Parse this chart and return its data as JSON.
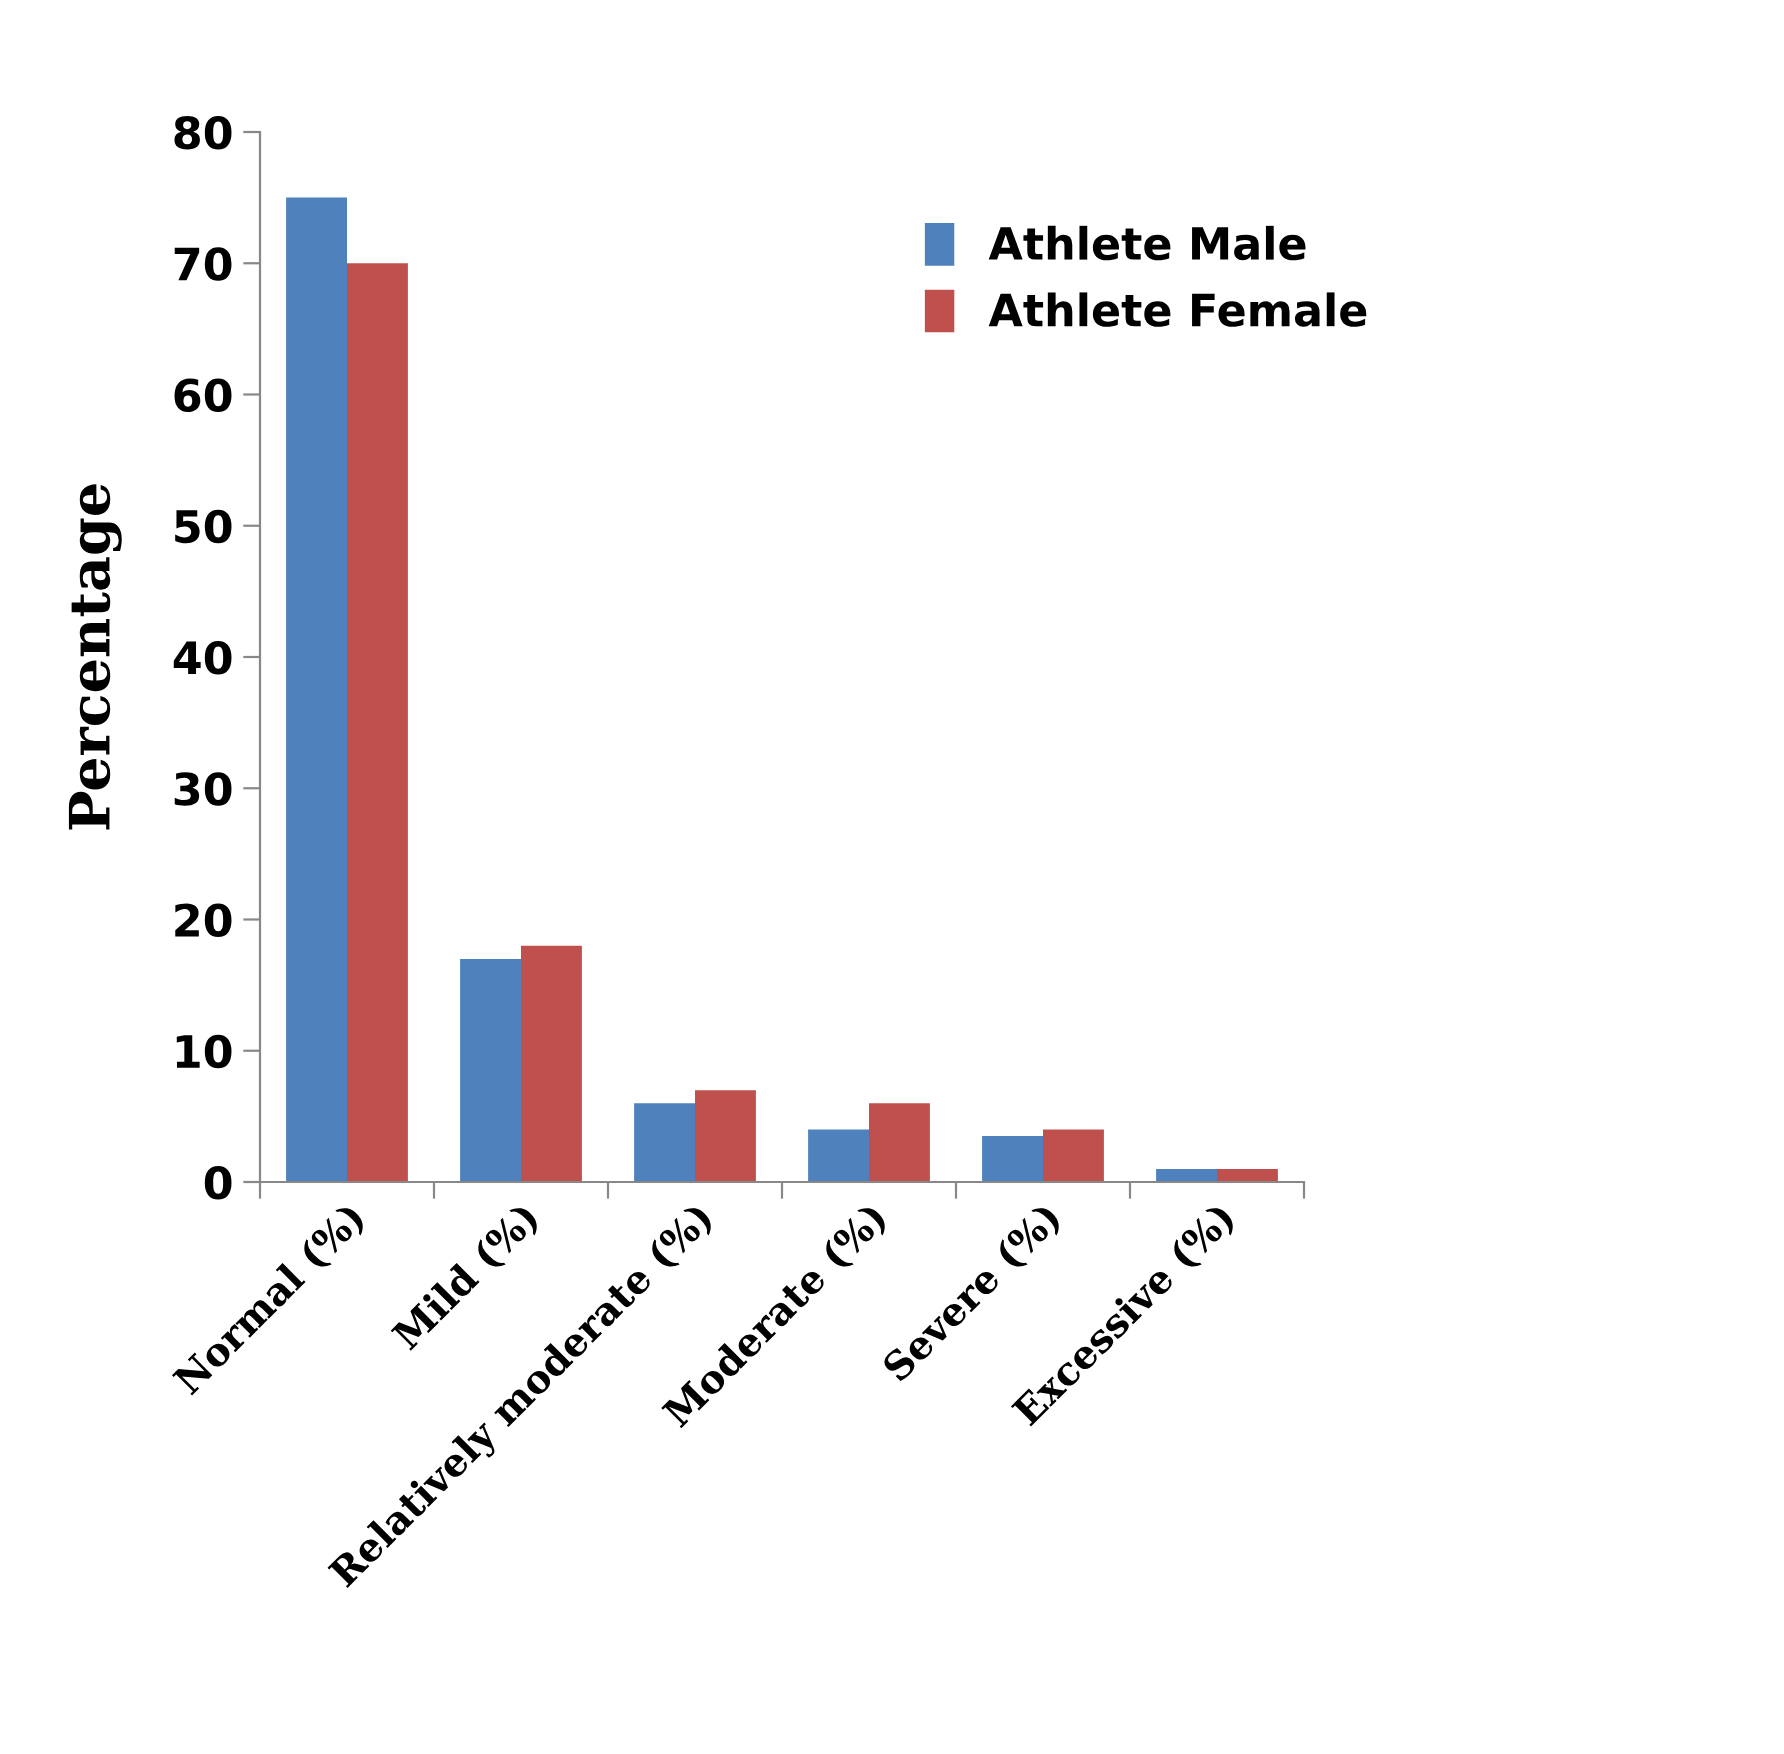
{
  "chart_data": {
    "type": "bar",
    "ylabel": "Percentage",
    "categories": [
      "Normal (%)",
      "Mild (%)",
      "Relatively moderate (%)",
      "Moderate (%)",
      "Severe (%)",
      "Excessive (%)"
    ],
    "series": [
      {
        "name": "Athlete Male",
        "color": "#4f81bd",
        "values": [
          75,
          17,
          6,
          4,
          3.5,
          1
        ]
      },
      {
        "name": "Athlete Female",
        "color": "#c0504d",
        "values": [
          70,
          18,
          7,
          6,
          4,
          1
        ]
      }
    ],
    "ylim": [
      0,
      80
    ],
    "yticks": [
      0,
      10,
      20,
      30,
      40,
      50,
      60,
      70,
      80
    ],
    "grid": false,
    "legend": "top right"
  }
}
